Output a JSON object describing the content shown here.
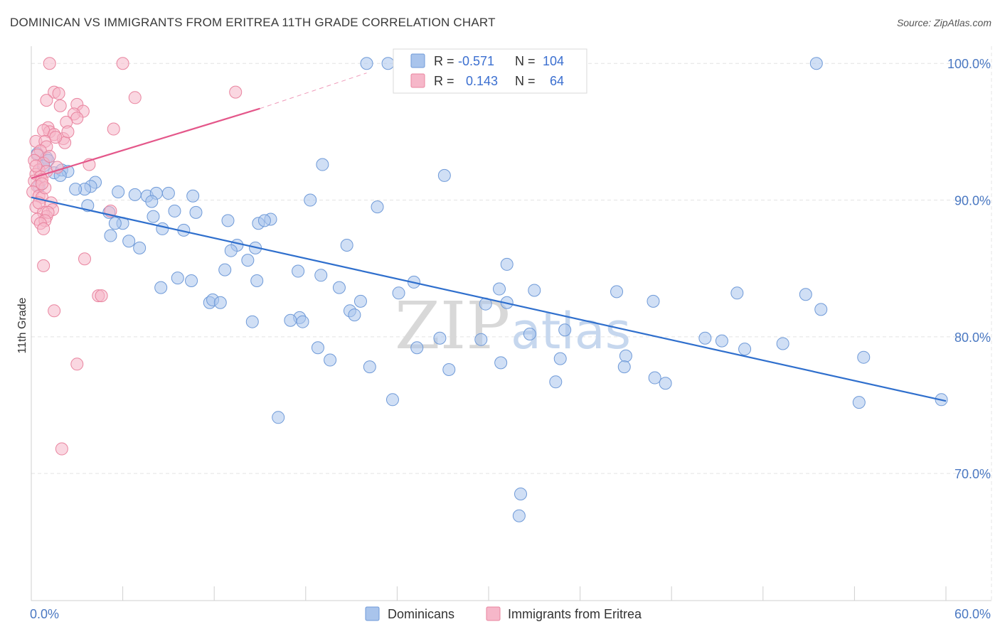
{
  "title": "DOMINICAN VS IMMIGRANTS FROM ERITREA 11TH GRADE CORRELATION CHART",
  "source": "Source: ZipAtlas.com",
  "watermark": {
    "zip": "ZIP",
    "atlas": "atlas"
  },
  "chart_data": {
    "type": "scatter",
    "ylabel": "11th Grade",
    "xlim": [
      0,
      60
    ],
    "ylim": [
      60.7,
      101
    ],
    "x_tick_labels": [
      "0.0%",
      "60.0%"
    ],
    "y_ticks": [
      {
        "value": 100,
        "label": "100.0%"
      },
      {
        "value": 90,
        "label": "90.0%"
      },
      {
        "value": 80,
        "label": "80.0%"
      },
      {
        "value": 70,
        "label": "70.0%"
      }
    ],
    "grid": true,
    "legend_position": "top-center",
    "stats": [
      {
        "r_label": "R =",
        "r": "-0.571",
        "n_label": "N =",
        "n": "104",
        "color": "#4a7fd0"
      },
      {
        "r_label": "R =",
        "r": "0.143",
        "n_label": "N =",
        "n": "64",
        "color": "#e86a94"
      }
    ],
    "series": [
      {
        "name": "Dominicans",
        "color": "#a9c4ec",
        "stroke": "#6f9ad8",
        "trend": {
          "x1": 0,
          "y1": 90.2,
          "x2": 60,
          "y2": 75.3,
          "color": "#2f6fcd"
        },
        "points": [
          [
            0.4,
            93.4
          ],
          [
            1.0,
            93.1
          ],
          [
            1.1,
            92.9
          ],
          [
            0.8,
            92.5
          ],
          [
            1.5,
            92.0
          ],
          [
            2.0,
            92.2
          ],
          [
            2.4,
            92.1
          ],
          [
            1.9,
            91.8
          ],
          [
            0.5,
            91.0
          ],
          [
            4.2,
            91.3
          ],
          [
            3.9,
            91.0
          ],
          [
            3.5,
            90.8
          ],
          [
            2.9,
            90.8
          ],
          [
            5.7,
            90.6
          ],
          [
            6.8,
            90.4
          ],
          [
            7.6,
            90.3
          ],
          [
            9.0,
            90.5
          ],
          [
            8.2,
            90.5
          ],
          [
            10.6,
            90.3
          ],
          [
            7.9,
            89.9
          ],
          [
            3.7,
            89.6
          ],
          [
            5.1,
            89.1
          ],
          [
            9.4,
            89.2
          ],
          [
            10.8,
            89.1
          ],
          [
            8.0,
            88.8
          ],
          [
            6.0,
            88.3
          ],
          [
            5.5,
            88.3
          ],
          [
            8.6,
            87.9
          ],
          [
            10.0,
            87.8
          ],
          [
            5.2,
            87.4
          ],
          [
            6.4,
            87.0
          ],
          [
            7.1,
            86.5
          ],
          [
            12.9,
            88.5
          ],
          [
            14.9,
            88.3
          ],
          [
            15.7,
            88.6
          ],
          [
            15.3,
            88.5
          ],
          [
            18.3,
            90.0
          ],
          [
            19.1,
            92.6
          ],
          [
            22.7,
            89.5
          ],
          [
            20.7,
            86.7
          ],
          [
            13.5,
            86.7
          ],
          [
            14.7,
            86.5
          ],
          [
            13.1,
            86.3
          ],
          [
            14.2,
            85.6
          ],
          [
            12.7,
            84.9
          ],
          [
            17.5,
            84.8
          ],
          [
            19.0,
            84.5
          ],
          [
            14.8,
            84.1
          ],
          [
            10.5,
            84.1
          ],
          [
            9.6,
            84.3
          ],
          [
            8.5,
            83.6
          ],
          [
            20.2,
            83.6
          ],
          [
            25.1,
            84.0
          ],
          [
            24.1,
            83.2
          ],
          [
            21.6,
            82.6
          ],
          [
            11.7,
            82.5
          ],
          [
            11.9,
            82.7
          ],
          [
            12.4,
            82.5
          ],
          [
            20.9,
            81.9
          ],
          [
            21.2,
            81.6
          ],
          [
            17.6,
            81.4
          ],
          [
            17.0,
            81.2
          ],
          [
            17.8,
            81.1
          ],
          [
            14.5,
            81.1
          ],
          [
            18.8,
            79.2
          ],
          [
            19.6,
            78.3
          ],
          [
            25.3,
            79.2
          ],
          [
            26.8,
            79.9
          ],
          [
            27.4,
            77.6
          ],
          [
            29.5,
            79.8
          ],
          [
            30.8,
            78.1
          ],
          [
            29.8,
            82.4
          ],
          [
            31.2,
            82.5
          ],
          [
            31.2,
            85.3
          ],
          [
            30.7,
            83.5
          ],
          [
            33.0,
            83.4
          ],
          [
            32.7,
            80.2
          ],
          [
            35.0,
            80.5
          ],
          [
            34.7,
            78.4
          ],
          [
            34.4,
            76.7
          ],
          [
            38.4,
            83.3
          ],
          [
            39.0,
            78.6
          ],
          [
            38.9,
            77.8
          ],
          [
            40.8,
            82.6
          ],
          [
            40.9,
            77.0
          ],
          [
            41.6,
            76.6
          ],
          [
            44.2,
            79.9
          ],
          [
            45.3,
            79.7
          ],
          [
            46.3,
            83.2
          ],
          [
            46.8,
            79.1
          ],
          [
            49.3,
            79.5
          ],
          [
            50.8,
            83.1
          ],
          [
            51.5,
            100.0
          ],
          [
            27.1,
            91.8
          ],
          [
            22.0,
            100.0
          ],
          [
            23.4,
            100.0
          ],
          [
            25.9,
            100.0
          ],
          [
            23.7,
            75.4
          ],
          [
            16.2,
            74.1
          ],
          [
            32.1,
            68.5
          ],
          [
            32.0,
            66.9
          ],
          [
            51.8,
            82.0
          ],
          [
            54.3,
            75.2
          ],
          [
            54.6,
            78.5
          ],
          [
            59.7,
            75.4
          ],
          [
            22.2,
            77.8
          ]
        ]
      },
      {
        "name": "Immigrants from Eritrea",
        "color": "#f6b7c9",
        "stroke": "#e9849f",
        "trend": {
          "x1": 0,
          "y1": 91.6,
          "x2": 15.0,
          "y2": 96.7,
          "x3": 22.0,
          "y3": 99.3,
          "color": "#e4578a"
        },
        "points": [
          [
            1.2,
            100.0
          ],
          [
            6.0,
            100.0
          ],
          [
            6.8,
            97.5
          ],
          [
            13.4,
            97.9
          ],
          [
            1.5,
            97.9
          ],
          [
            1.8,
            97.8
          ],
          [
            1.0,
            97.3
          ],
          [
            1.9,
            96.9
          ],
          [
            3.0,
            97.0
          ],
          [
            3.4,
            96.5
          ],
          [
            2.8,
            96.3
          ],
          [
            3.0,
            96.0
          ],
          [
            2.3,
            95.7
          ],
          [
            5.4,
            95.2
          ],
          [
            1.1,
            95.3
          ],
          [
            1.2,
            95.0
          ],
          [
            0.8,
            95.1
          ],
          [
            1.5,
            94.8
          ],
          [
            2.1,
            94.5
          ],
          [
            0.3,
            94.3
          ],
          [
            0.9,
            94.3
          ],
          [
            2.2,
            94.2
          ],
          [
            1.0,
            93.9
          ],
          [
            0.6,
            93.6
          ],
          [
            0.4,
            93.3
          ],
          [
            0.2,
            92.9
          ],
          [
            0.8,
            92.7
          ],
          [
            3.8,
            92.6
          ],
          [
            0.5,
            92.2
          ],
          [
            1.0,
            92.1
          ],
          [
            0.3,
            91.9
          ],
          [
            0.6,
            91.7
          ],
          [
            0.2,
            91.4
          ],
          [
            0.7,
            91.5
          ],
          [
            0.4,
            91.0
          ],
          [
            0.1,
            90.6
          ],
          [
            0.5,
            90.3
          ],
          [
            0.7,
            90.2
          ],
          [
            1.3,
            89.8
          ],
          [
            0.3,
            89.5
          ],
          [
            1.4,
            89.3
          ],
          [
            0.8,
            89.1
          ],
          [
            1.0,
            88.8
          ],
          [
            1.1,
            89.1
          ],
          [
            0.4,
            88.6
          ],
          [
            0.9,
            88.5
          ],
          [
            0.6,
            88.3
          ],
          [
            0.8,
            87.9
          ],
          [
            3.5,
            85.7
          ],
          [
            0.8,
            85.2
          ],
          [
            5.2,
            89.2
          ],
          [
            4.4,
            83.0
          ],
          [
            4.6,
            83.0
          ],
          [
            1.5,
            81.9
          ],
          [
            3.0,
            78.0
          ],
          [
            2.0,
            71.8
          ],
          [
            0.3,
            92.5
          ],
          [
            0.5,
            89.8
          ],
          [
            1.2,
            93.2
          ],
          [
            2.4,
            95.0
          ],
          [
            1.6,
            94.6
          ],
          [
            0.9,
            90.9
          ],
          [
            1.7,
            92.4
          ],
          [
            0.7,
            91.2
          ]
        ]
      }
    ]
  }
}
